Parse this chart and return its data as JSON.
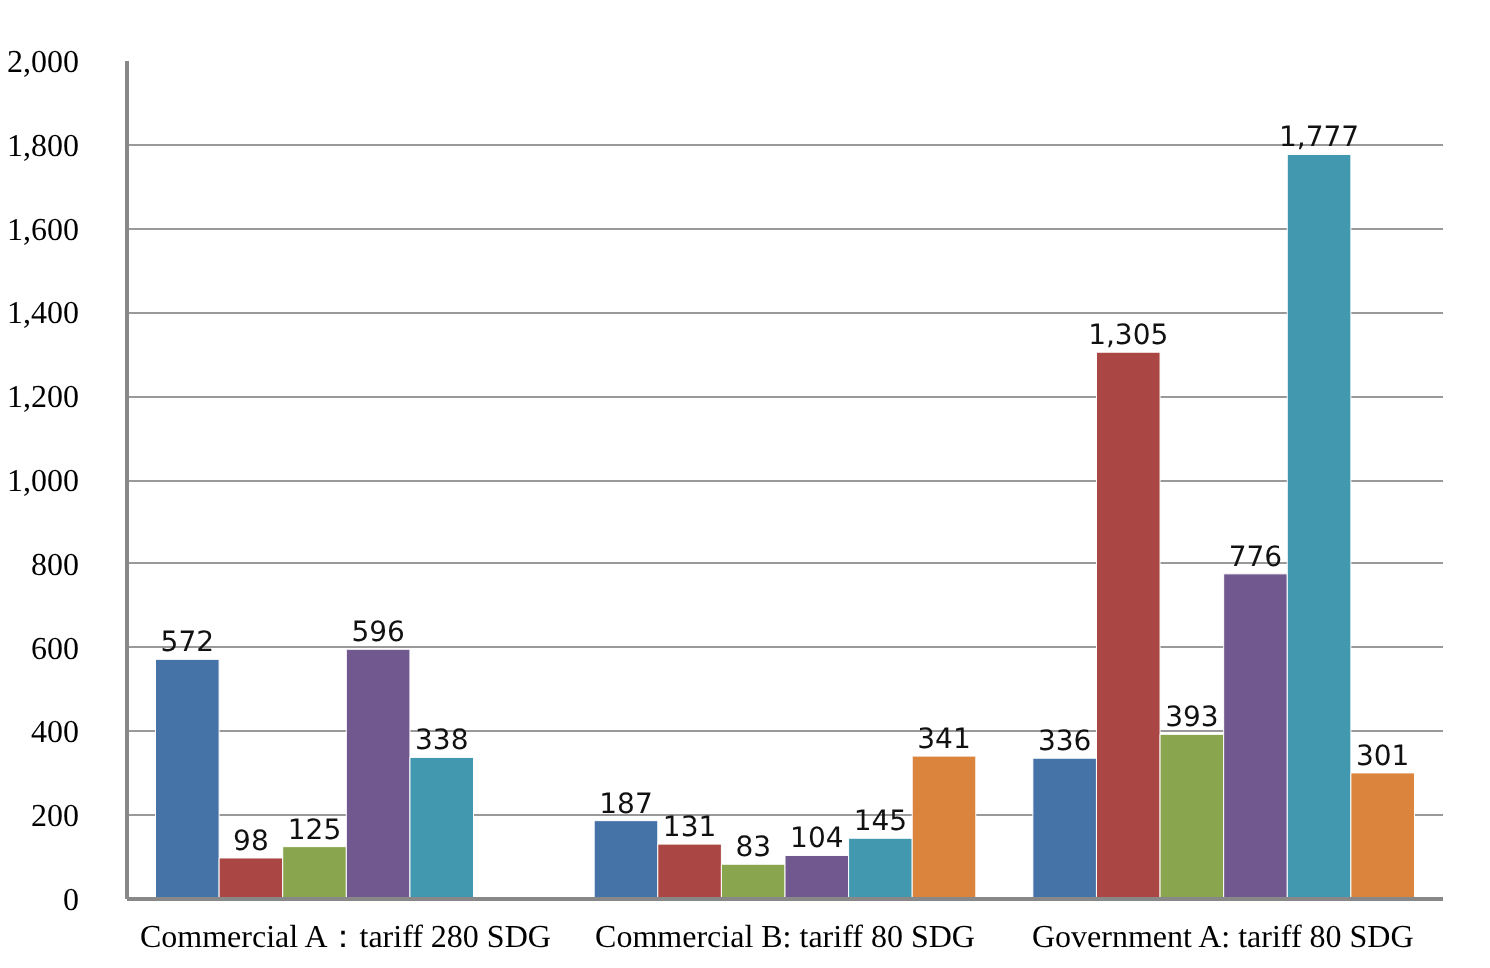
{
  "chart_data": {
    "type": "bar",
    "categories": [
      "Commercial A：tariff 280 SDG",
      "Commercial B: tariff 80 SDG",
      "Government A: tariff 80 SDG"
    ],
    "series": [
      {
        "color": "#4572a7",
        "values": [
          572,
          187,
          336
        ],
        "value_labels": [
          "572",
          "187",
          "336"
        ]
      },
      {
        "color": "#aa4643",
        "values": [
          98,
          131,
          1305
        ],
        "value_labels": [
          "98",
          "131",
          "1,305"
        ]
      },
      {
        "color": "#89a54e",
        "values": [
          125,
          83,
          393
        ],
        "value_labels": [
          "125",
          "83",
          "393"
        ]
      },
      {
        "color": "#71588f",
        "values": [
          596,
          104,
          776
        ],
        "value_labels": [
          "596",
          "104",
          "776"
        ]
      },
      {
        "color": "#4198af",
        "values": [
          338,
          145,
          1777
        ],
        "value_labels": [
          "338",
          "145",
          "1,777"
        ]
      },
      {
        "color": "#db843d",
        "values": [
          null,
          341,
          301
        ],
        "value_labels": [
          null,
          "341",
          "301"
        ]
      }
    ],
    "ylim": [
      0,
      2000
    ],
    "yticks": [
      {
        "value": 0,
        "label": "0"
      },
      {
        "value": 200,
        "label": "200"
      },
      {
        "value": 400,
        "label": "400"
      },
      {
        "value": 600,
        "label": "600"
      },
      {
        "value": 800,
        "label": "800"
      },
      {
        "value": 1000,
        "label": "1,000"
      },
      {
        "value": 1200,
        "label": "1,200"
      },
      {
        "value": 1400,
        "label": "1,400"
      },
      {
        "value": 1600,
        "label": "1,600"
      },
      {
        "value": 1800,
        "label": "1,800"
      },
      {
        "value": 2000,
        "label": "2,000"
      }
    ],
    "grid": "y"
  }
}
